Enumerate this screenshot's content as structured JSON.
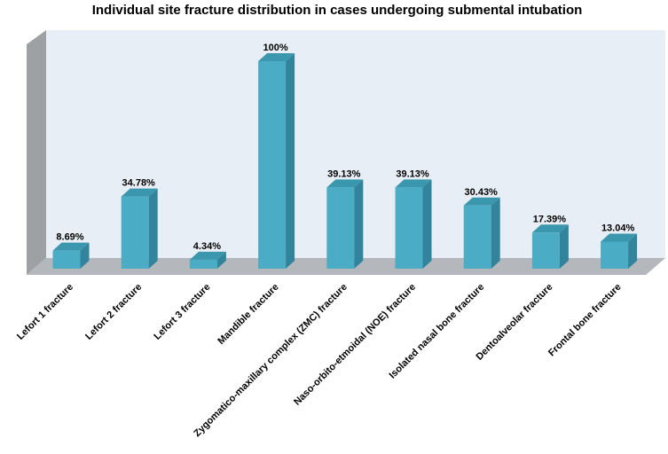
{
  "chart_data": {
    "type": "bar",
    "style": "3d-column",
    "title": "Individual site fracture distribution in cases undergoing submental intubation",
    "categories": [
      "Lefort 1 fracture",
      "Lefort 2 fracture",
      "Lefort 3 fracture",
      "Mandible fracture",
      "Zygomatico-maxillary complex (ZMC) fracture",
      "Naso-orbito-etmoidal (NOE) fracture",
      "Isolated nasal bone fracture",
      "Dentoalveolar fracture",
      "Frontal bone fracture"
    ],
    "values": [
      8.69,
      34.78,
      4.34,
      100,
      39.13,
      39.13,
      30.43,
      17.39,
      13.04
    ],
    "data_labels": [
      "8.69%",
      "34.78%",
      "4.34%",
      "100%",
      "39.13%",
      "39.13%",
      "30.43%",
      "17.39%",
      "13.04%"
    ],
    "ylim": [
      0,
      100
    ],
    "grid": false,
    "legend": "none",
    "colors": {
      "bar_front": "#4bacc6",
      "bar_side": "#31849b",
      "bar_top": "#3b97ae",
      "back_wall": "#e8eef5",
      "side_wall": "#9da1a4",
      "floor": "#b4b8bc"
    }
  }
}
